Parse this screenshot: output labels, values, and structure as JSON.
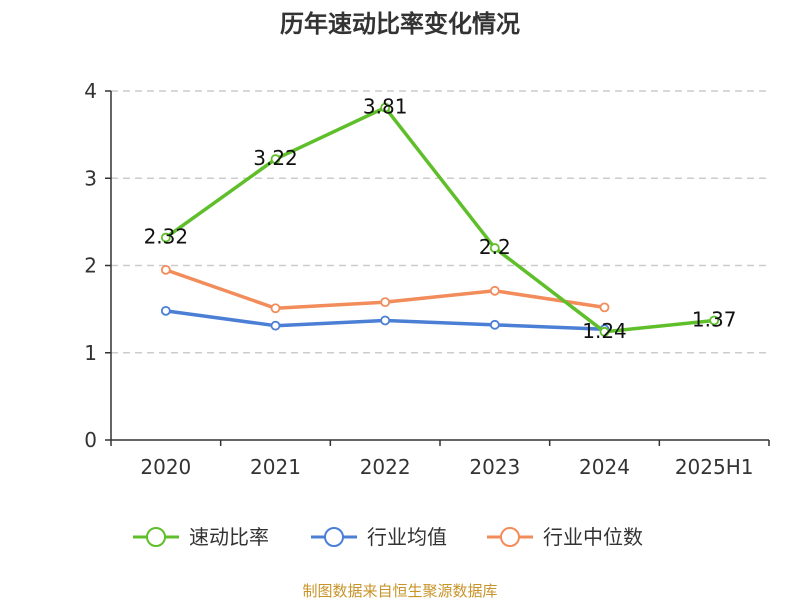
{
  "chart_data": {
    "type": "line",
    "title": "历年速动比率变化情况",
    "categories": [
      "2020",
      "2021",
      "2022",
      "2023",
      "2024",
      "2025H1"
    ],
    "ylim": [
      0,
      4
    ],
    "yticks": [
      "0",
      "1",
      "2",
      "3",
      "4"
    ],
    "grid": true,
    "legend_position": "bottom",
    "series": [
      {
        "name": "速动比率",
        "color": "#5fbf2a",
        "values": [
          2.32,
          3.22,
          3.81,
          2.2,
          1.24,
          1.37
        ],
        "labels": [
          "2.32",
          "3.22",
          "3.81",
          "2.2",
          "1.24",
          "1.37"
        ]
      },
      {
        "name": "行业均值",
        "color": "#4b7fd6",
        "values": [
          1.48,
          1.31,
          1.37,
          1.32,
          1.27,
          null
        ]
      },
      {
        "name": "行业中位数",
        "color": "#f28c5a",
        "values": [
          1.95,
          1.51,
          1.58,
          1.71,
          1.52,
          null
        ]
      }
    ]
  },
  "source_text": "制图数据来自恒生聚源数据库"
}
